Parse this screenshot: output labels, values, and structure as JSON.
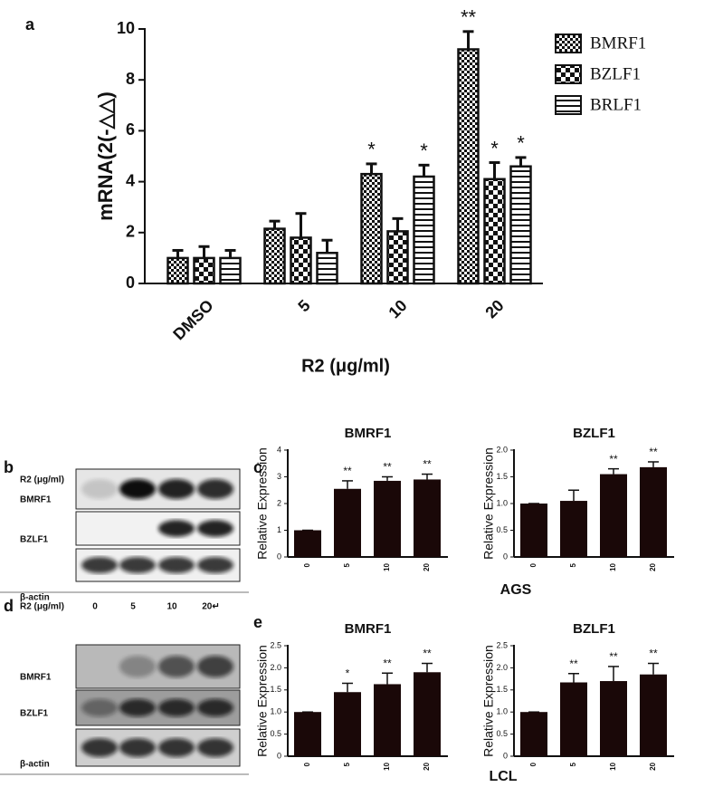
{
  "chart_data": [
    {
      "type": "bar",
      "xlabel": "R2 (μg/ml)",
      "ylabel": "mRNA(2(-△△)",
      "categories": [
        "DMSO",
        "5",
        "10",
        "20"
      ],
      "ylim": [
        0,
        10
      ],
      "yticks": [
        0,
        2,
        4,
        6,
        8,
        10
      ],
      "legend": "right",
      "series": [
        {
          "name": "BMRF1",
          "pattern": "checker-small",
          "color": "#111111",
          "values": [
            1.0,
            2.15,
            4.3,
            9.2
          ],
          "errors": [
            0.3,
            0.3,
            0.4,
            0.7
          ],
          "significance": [
            null,
            null,
            "*",
            "**"
          ]
        },
        {
          "name": "BZLF1",
          "pattern": "checker-large",
          "color": "#111111",
          "values": [
            1.0,
            1.8,
            2.05,
            4.1
          ],
          "errors": [
            0.45,
            0.95,
            0.5,
            0.65
          ],
          "significance": [
            null,
            null,
            null,
            "*"
          ]
        },
        {
          "name": "BRLF1",
          "pattern": "hstripe",
          "color": "#111111",
          "values": [
            1.0,
            1.2,
            4.2,
            4.6
          ],
          "errors": [
            0.3,
            0.5,
            0.45,
            0.35
          ],
          "significance": [
            null,
            null,
            "*",
            "*"
          ]
        }
      ]
    },
    {
      "type": "bar",
      "title": "BMRF1",
      "ylabel": "Relative Expression",
      "categories": [
        "0",
        "5",
        "10",
        "20"
      ],
      "values": [
        1.0,
        2.55,
        2.85,
        2.9
      ],
      "errors": [
        0,
        0.3,
        0.15,
        0.2
      ],
      "significance": [
        null,
        "**",
        "**",
        "**"
      ],
      "color": "#1a0808",
      "ylim": [
        0,
        4
      ],
      "yticks": [
        0,
        1,
        2,
        3,
        4
      ]
    },
    {
      "type": "bar",
      "title": "BZLF1",
      "ylabel": "Relative Expression",
      "categories": [
        "0",
        "5",
        "10",
        "20"
      ],
      "values": [
        1.0,
        1.05,
        1.55,
        1.68
      ],
      "errors": [
        0,
        0.2,
        0.1,
        0.1
      ],
      "significance": [
        null,
        null,
        "**",
        "**"
      ],
      "color": "#1a0808",
      "ylim": [
        0,
        2
      ],
      "yticks": [
        0,
        0.5,
        {
          "value": 1,
          "label": "1.0"
        },
        1.5,
        {
          "value": 2,
          "label": "2.0"
        }
      ]
    },
    {
      "type": "bar",
      "title": "BMRF1",
      "ylabel": "Relative Expression",
      "categories": [
        "0",
        "5",
        "10",
        "20"
      ],
      "values": [
        1.0,
        1.45,
        1.63,
        1.9
      ],
      "errors": [
        0,
        0.2,
        0.25,
        0.2
      ],
      "significance": [
        null,
        "*",
        "**",
        "**"
      ],
      "color": "#1a0808",
      "ylim": [
        0,
        2.5
      ],
      "yticks": [
        0,
        0.5,
        {
          "value": 1,
          "label": "1.0"
        },
        1.5,
        {
          "value": 2,
          "label": "2.0"
        },
        2.5
      ]
    },
    {
      "type": "bar",
      "title": "BZLF1",
      "ylabel": "Relative Expression",
      "categories": [
        "0",
        "5",
        "10",
        "20"
      ],
      "values": [
        1.0,
        1.67,
        1.7,
        1.85
      ],
      "errors": [
        0,
        0.2,
        0.33,
        0.25
      ],
      "significance": [
        null,
        "**",
        "**",
        "**"
      ],
      "color": "#1a0808",
      "ylim": [
        0,
        2.5
      ],
      "yticks": [
        0,
        0.5,
        {
          "value": 1,
          "label": "1.0"
        },
        1.5,
        {
          "value": 2,
          "label": "2.0"
        },
        2.5
      ]
    }
  ],
  "panel_labels": [
    "a",
    "b",
    "c",
    "d",
    "e"
  ],
  "cell_lines": [
    "AGS",
    "LCL"
  ],
  "blots": [
    {
      "header": "R2 (μg/ml)",
      "lanes": [
        "0",
        "5",
        "10",
        "20↵"
      ],
      "rows": [
        "BMRF1",
        "BZLF1",
        "β-actin"
      ]
    },
    {
      "header": "R2 (μg/ml)",
      "lanes": [
        "0",
        "5",
        "10",
        "20↵"
      ],
      "rows": [
        "BMRF1",
        "BZLF1",
        "β-actin"
      ]
    }
  ]
}
